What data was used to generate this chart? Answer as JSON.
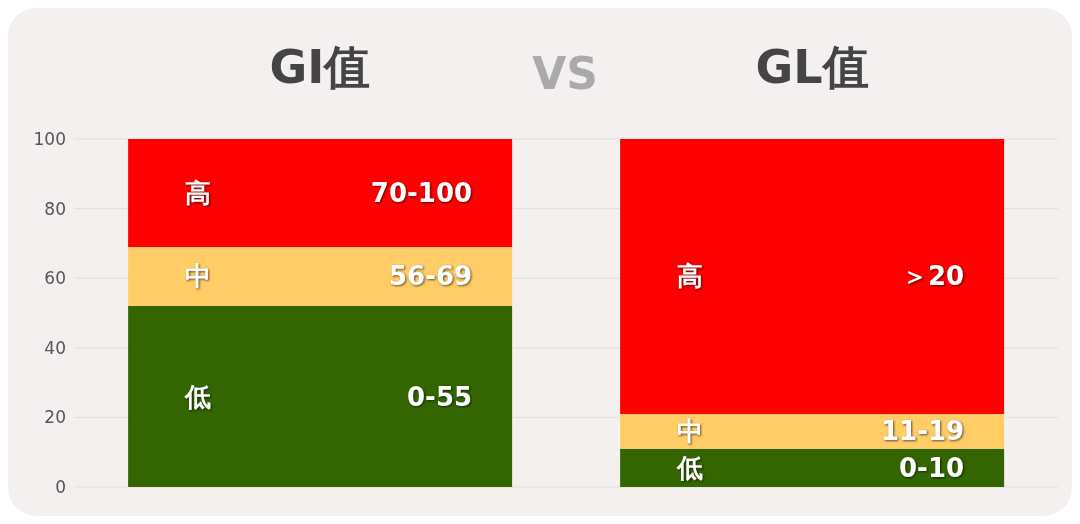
{
  "chart_data": {
    "type": "bar",
    "categories": [
      "GI值",
      "GL值"
    ],
    "stacked": true,
    "ylim": [
      0,
      100
    ],
    "yticks": [
      0,
      20,
      40,
      60,
      80,
      100
    ],
    "grid": "y",
    "annotations": [
      "VS",
      "70-100",
      "56-69",
      "0-55",
      "＞20",
      "11-19",
      "0-10"
    ],
    "series": [
      {
        "name": "低",
        "color": "#336600",
        "values": [
          52,
          11
        ]
      },
      {
        "name": "中",
        "color": "#ffcc66",
        "values": [
          17,
          10
        ]
      },
      {
        "name": "高",
        "color": "#ff0000",
        "values": [
          31,
          79
        ]
      }
    ]
  }
}
